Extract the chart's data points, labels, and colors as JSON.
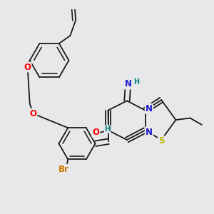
{
  "bg_color": "#e8e8ea",
  "bond_color": "#1a1a1a",
  "bond_width": 1.3,
  "dbo": 0.012,
  "atom_colors": {
    "O": "#ff0000",
    "N": "#1a1acc",
    "S": "#b8b800",
    "Br": "#cc7700",
    "H": "#008080",
    "C": "#1a1a1a"
  },
  "fs": 8.5,
  "fs_small": 7
}
